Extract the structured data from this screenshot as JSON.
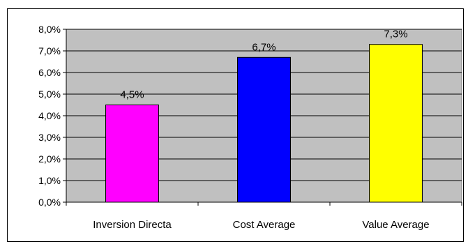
{
  "chart_data": {
    "type": "bar",
    "title": "",
    "xlabel": "",
    "ylabel": "",
    "categories": [
      "Inversion Directa",
      "Cost Average",
      "Value Average"
    ],
    "values": [
      4.5,
      6.7,
      7.3
    ],
    "value_labels": [
      "4,5%",
      "6,7%",
      "7,3%"
    ],
    "bar_colors": [
      "#ff00ff",
      "#0000ff",
      "#ffff00"
    ],
    "ylim": [
      0,
      8
    ],
    "yticks": [
      0,
      1,
      2,
      3,
      4,
      5,
      6,
      7,
      8
    ],
    "ytick_labels": [
      "0,0%",
      "1,0%",
      "2,0%",
      "3,0%",
      "4,0%",
      "5,0%",
      "6,0%",
      "7,0%",
      "8,0%"
    ],
    "grid": true,
    "legend": "none",
    "plot_background": "#c0c0c0"
  }
}
